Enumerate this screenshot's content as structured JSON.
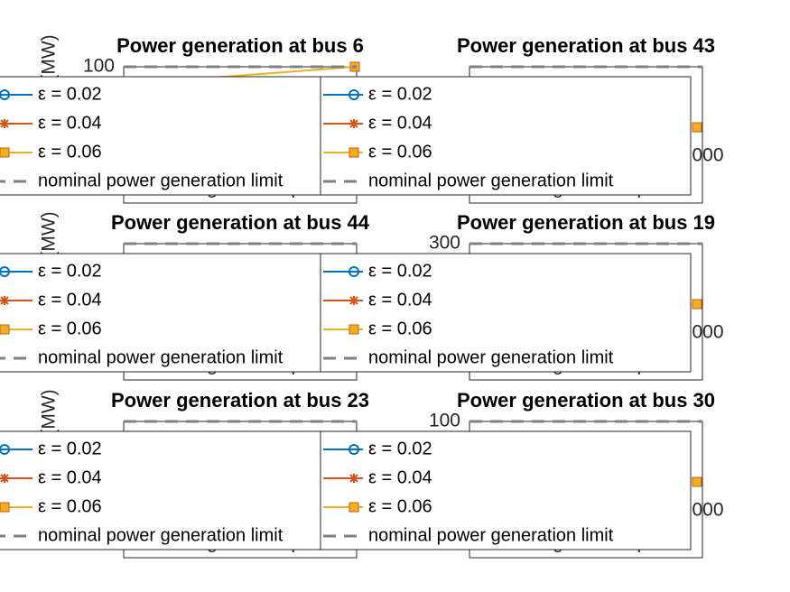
{
  "chart_data": [
    {
      "type": "line",
      "title": "Power generation at bus 6",
      "ylabel": "(MW)",
      "xlabel": "weight factor ρ",
      "ylim": [
        0,
        100
      ],
      "yticks": [
        100
      ],
      "series": [
        {
          "name": "ε  = 0.02",
          "color": "#0072bd",
          "marker": "circle"
        },
        {
          "name": "ε  = 0.04",
          "color": "#d95319",
          "marker": "star"
        },
        {
          "name": "ε  = 0.06",
          "color": "#edb120",
          "marker": "square",
          "values": [
            100
          ]
        },
        {
          "name": "nominal power generation limit",
          "color": "#808080",
          "dashed": true,
          "values": [
            100
          ]
        }
      ]
    },
    {
      "type": "line",
      "title": "Power generation at bus 43",
      "xlabel": "weight factor ρ",
      "xtick_text": "000",
      "series": [
        {
          "name": "ε  = 0.02",
          "color": "#0072bd",
          "marker": "circle"
        },
        {
          "name": "ε  = 0.04",
          "color": "#d95319",
          "marker": "star"
        },
        {
          "name": "ε  = 0.06",
          "color": "#edb120",
          "marker": "square"
        },
        {
          "name": "nominal power generation limit",
          "color": "#808080",
          "dashed": true
        }
      ]
    },
    {
      "type": "line",
      "title": "Power generation at bus 44",
      "ylabel": "(MW)",
      "xlabel": "weight factor ρ",
      "series": [
        {
          "name": "ε  = 0.02",
          "color": "#0072bd",
          "marker": "circle"
        },
        {
          "name": "ε  = 0.04",
          "color": "#d95319",
          "marker": "star"
        },
        {
          "name": "ε  = 0.06",
          "color": "#edb120",
          "marker": "square"
        },
        {
          "name": "nominal power generation limit",
          "color": "#808080",
          "dashed": true
        }
      ]
    },
    {
      "type": "line",
      "title": "Power generation at bus 19",
      "xlabel": "weight factor ρ",
      "ylim": [
        0,
        300
      ],
      "yticks": [
        300
      ],
      "xtick_text": "000",
      "series": [
        {
          "name": "ε  = 0.02",
          "color": "#0072bd",
          "marker": "circle"
        },
        {
          "name": "ε  = 0.04",
          "color": "#d95319",
          "marker": "star"
        },
        {
          "name": "ε  = 0.06",
          "color": "#edb120",
          "marker": "square"
        },
        {
          "name": "nominal power generation limit",
          "color": "#808080",
          "dashed": true,
          "values": [
            300
          ]
        }
      ]
    },
    {
      "type": "line",
      "title": "Power generation at bus 23",
      "ylabel": "(MW)",
      "xlabel": "weight factor ρ",
      "series": [
        {
          "name": "ε  = 0.02",
          "color": "#0072bd",
          "marker": "circle"
        },
        {
          "name": "ε  = 0.04",
          "color": "#d95319",
          "marker": "star"
        },
        {
          "name": "ε  = 0.06",
          "color": "#edb120",
          "marker": "square"
        },
        {
          "name": "nominal power generation limit",
          "color": "#808080",
          "dashed": true
        }
      ]
    },
    {
      "type": "line",
      "title": "Power generation at bus 30",
      "xlabel": "weight factor ρ",
      "ylim": [
        0,
        100
      ],
      "yticks": [
        100
      ],
      "xtick_text": "000",
      "series": [
        {
          "name": "ε  = 0.02",
          "color": "#0072bd",
          "marker": "circle"
        },
        {
          "name": "ε  = 0.04",
          "color": "#d95319",
          "marker": "star"
        },
        {
          "name": "ε  = 0.06",
          "color": "#edb120",
          "marker": "square"
        },
        {
          "name": "nominal power generation limit",
          "color": "#808080",
          "dashed": true,
          "values": [
            100
          ]
        }
      ]
    }
  ]
}
